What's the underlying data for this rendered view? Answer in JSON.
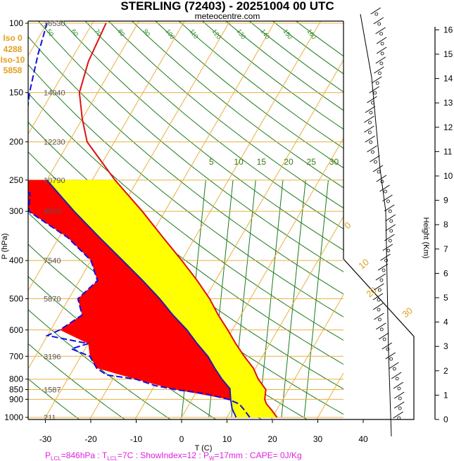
{
  "title": "STERLING (72403) - 20251004 00 UTC",
  "source": "meteocentre.com",
  "iso": [
    "Iso 0",
    "4288",
    "Iso-10",
    "5858"
  ],
  "ylabel": "P (hPa)",
  "xlabel": "T (C)",
  "height_label": "Height (Km)",
  "footer": {
    "p_lcl_sym": "P",
    "p_lcl_sub": "LCL",
    "p_lcl_val": "=846hPa : ",
    "t_lcl_sym": "T",
    "t_lcl_sub": "LCL",
    "t_lcl_val": "=7C : ShowIndex=12 : ",
    "pw_sym": "P",
    "pw_sub": "W",
    "pw_val": "=17mm : CAPE= 0J/Kg"
  },
  "colors": {
    "temp": "#e01010",
    "dewpoint": "#1010e0",
    "parcel": "#2020b0",
    "cape_fill": "#ff0000",
    "cin_fill": "#ffff00",
    "isobar": "#e8b040",
    "isotherm": "#e8b040",
    "dry_adiabat": "#1a7a1a",
    "moist_adiabat": "#e8b040",
    "mixing_ratio": "#1a7a1a"
  },
  "chart_data": {
    "type": "skew-t",
    "x_ticks": [
      -30,
      -20,
      -10,
      0,
      10,
      20,
      30,
      40
    ],
    "p_ticks": [
      100,
      150,
      200,
      250,
      300,
      400,
      500,
      600,
      700,
      800,
      850,
      900,
      1000
    ],
    "heights_m": [
      {
        "p": 100,
        "h": "16530"
      },
      {
        "p": 150,
        "h": "14040"
      },
      {
        "p": 200,
        "h": "12230"
      },
      {
        "p": 250,
        "h": "10790"
      },
      {
        "p": 300,
        "h": "9570"
      },
      {
        "p": 400,
        "h": "7540"
      },
      {
        "p": 500,
        "h": "5870"
      },
      {
        "p": 700,
        "h": "3196"
      },
      {
        "p": 850,
        "h": "1587"
      },
      {
        "p": 1000,
        "h": "211"
      }
    ],
    "height_ticks_km": [
      0,
      1,
      2,
      3,
      4,
      5,
      6,
      7,
      8,
      9,
      10,
      11,
      12,
      13,
      14,
      15,
      16
    ],
    "temperature": [
      {
        "p": 1000,
        "t": 21
      },
      {
        "p": 960,
        "t": 19
      },
      {
        "p": 925,
        "t": 17
      },
      {
        "p": 900,
        "t": 16
      },
      {
        "p": 850,
        "t": 15
      },
      {
        "p": 800,
        "t": 12
      },
      {
        "p": 750,
        "t": 9.5
      },
      {
        "p": 700,
        "t": 6
      },
      {
        "p": 650,
        "t": 2.5
      },
      {
        "p": 600,
        "t": -1
      },
      {
        "p": 550,
        "t": -5
      },
      {
        "p": 500,
        "t": -9
      },
      {
        "p": 450,
        "t": -14
      },
      {
        "p": 400,
        "t": -20
      },
      {
        "p": 350,
        "t": -27
      },
      {
        "p": 300,
        "t": -35
      },
      {
        "p": 250,
        "t": -45
      },
      {
        "p": 200,
        "t": -56
      },
      {
        "p": 175,
        "t": -60
      },
      {
        "p": 150,
        "t": -64
      },
      {
        "p": 125,
        "t": -66
      },
      {
        "p": 100,
        "t": -67
      }
    ],
    "dewpoint": [
      {
        "p": 1000,
        "t": 15
      },
      {
        "p": 960,
        "t": 13
      },
      {
        "p": 925,
        "t": 11
      },
      {
        "p": 900,
        "t": 8
      },
      {
        "p": 870,
        "t": 2
      },
      {
        "p": 850,
        "t": -5
      },
      {
        "p": 830,
        "t": -10
      },
      {
        "p": 800,
        "t": -15
      },
      {
        "p": 780,
        "t": -22
      },
      {
        "p": 750,
        "t": -25
      },
      {
        "p": 700,
        "t": -28
      },
      {
        "p": 670,
        "t": -33
      },
      {
        "p": 650,
        "t": -30
      },
      {
        "p": 620,
        "t": -40
      },
      {
        "p": 600,
        "t": -38
      },
      {
        "p": 550,
        "t": -35
      },
      {
        "p": 500,
        "t": -38
      },
      {
        "p": 450,
        "t": -36
      },
      {
        "p": 400,
        "t": -40
      },
      {
        "p": 350,
        "t": -48
      },
      {
        "p": 300,
        "t": -60
      },
      {
        "p": 270,
        "t": -62
      },
      {
        "p": 250,
        "t": -68
      },
      {
        "p": 200,
        "t": -70
      },
      {
        "p": 150,
        "t": -75
      },
      {
        "p": 120,
        "t": -78
      },
      {
        "p": 100,
        "t": -80
      }
    ],
    "parcel": [
      {
        "p": 1000,
        "t": 12
      },
      {
        "p": 950,
        "t": 10
      },
      {
        "p": 900,
        "t": 8.5
      },
      {
        "p": 846,
        "t": 7
      },
      {
        "p": 800,
        "t": 4
      },
      {
        "p": 750,
        "t": 1
      },
      {
        "p": 700,
        "t": -2
      },
      {
        "p": 650,
        "t": -6
      },
      {
        "p": 600,
        "t": -10
      },
      {
        "p": 550,
        "t": -15
      },
      {
        "p": 500,
        "t": -20
      },
      {
        "p": 450,
        "t": -26
      },
      {
        "p": 400,
        "t": -33
      },
      {
        "p": 350,
        "t": -41
      },
      {
        "p": 300,
        "t": -50
      },
      {
        "p": 250,
        "t": -60
      }
    ],
    "mixing_ratio_labels": [
      "5",
      "10",
      "15",
      "20",
      "25",
      "30"
    ],
    "saturated_labels": [
      "0",
      "10",
      "20",
      "30"
    ]
  }
}
